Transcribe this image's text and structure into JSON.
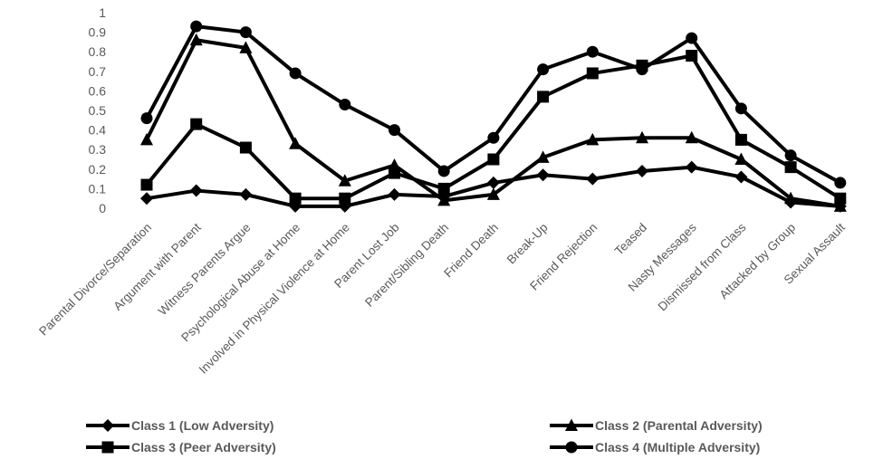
{
  "chart_data": {
    "type": "line",
    "title": "",
    "xlabel": "",
    "ylabel": "",
    "ylim": [
      0,
      1
    ],
    "yticks": [
      "0",
      "0.1",
      "0.2",
      "0.3",
      "0.4",
      "0.5",
      "0.6",
      "0.7",
      "0.8",
      "0.9",
      "1"
    ],
    "grid": false,
    "legend_position": "bottom",
    "categories": [
      "Parental Divorce/Separation",
      "Argument with Parent",
      "Witness Parents Argue",
      "Psychological Abuse at Home",
      "Involved in Physical Violence at Home",
      "Parent Lost Job",
      "Parent/Sibling Death",
      "Friend Death",
      "Break-Up",
      "Friend Rejection",
      "Teased",
      "Nasty Messages",
      "Dismissed from Class",
      "Attacked by Group",
      "Sexual Assault"
    ],
    "series": [
      {
        "name": "Class 1 (Low Adversity)",
        "marker": "diamond",
        "values": [
          0.05,
          0.09,
          0.07,
          0.01,
          0.01,
          0.07,
          0.06,
          0.13,
          0.17,
          0.15,
          0.19,
          0.21,
          0.16,
          0.03,
          0.01
        ]
      },
      {
        "name": "Class 2 (Parental Adversity)",
        "marker": "triangle",
        "values": [
          0.35,
          0.86,
          0.82,
          0.33,
          0.14,
          0.22,
          0.04,
          0.07,
          0.26,
          0.35,
          0.36,
          0.36,
          0.25,
          0.05,
          0.01
        ]
      },
      {
        "name": "Class 3 (Peer Adversity)",
        "marker": "square",
        "values": [
          0.12,
          0.43,
          0.31,
          0.05,
          0.05,
          0.18,
          0.1,
          0.25,
          0.57,
          0.69,
          0.73,
          0.78,
          0.35,
          0.21,
          0.05
        ]
      },
      {
        "name": "Class 4 (Multiple Adversity)",
        "marker": "circle",
        "values": [
          0.46,
          0.93,
          0.9,
          0.69,
          0.53,
          0.4,
          0.19,
          0.36,
          0.71,
          0.8,
          0.71,
          0.87,
          0.51,
          0.27,
          0.13
        ]
      }
    ],
    "colors": {
      "line": "#000000",
      "text": "#595959"
    }
  }
}
